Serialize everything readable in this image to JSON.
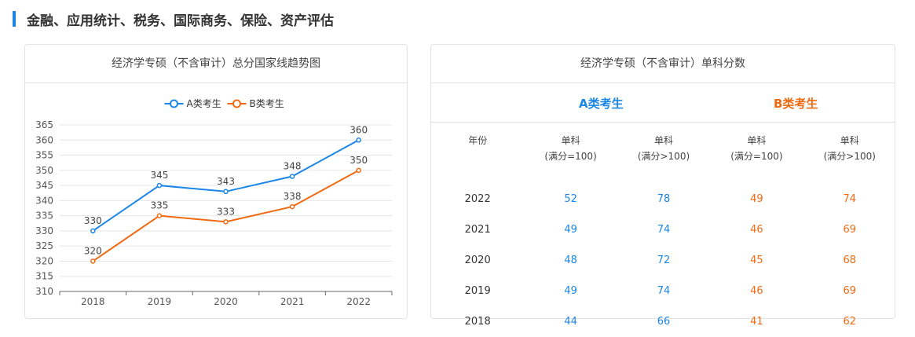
{
  "section": {
    "title": "金融、应用统计、税务、国际商务、保险、资产评估"
  },
  "chart_card": {
    "title": "经济学专硕（不含审计）总分国家线趋势图"
  },
  "chart_data": {
    "type": "line",
    "title": "经济学专硕（不含审计）总分国家线趋势图",
    "categories": [
      "2018",
      "2019",
      "2020",
      "2021",
      "2022"
    ],
    "series": [
      {
        "name": "A类考生",
        "values": [
          330,
          345,
          343,
          348,
          360
        ],
        "color": "#1a86e8"
      },
      {
        "name": "B类考生",
        "values": [
          320,
          335,
          333,
          338,
          350
        ],
        "color": "#f06a12"
      }
    ],
    "yticks": [
      310,
      315,
      320,
      325,
      330,
      335,
      340,
      345,
      350,
      355,
      360,
      365
    ],
    "ylim": [
      310,
      365
    ],
    "legend_position": "top-center",
    "grid": true,
    "xlabel": "",
    "ylabel": ""
  },
  "table_card": {
    "title": "经济学专硕（不含审计）单科分数",
    "category_a": "A类考生",
    "category_b": "B类考生",
    "headers": [
      [
        "年份"
      ],
      [
        "单科",
        "(满分=100)"
      ],
      [
        "单科",
        "(满分>100)"
      ],
      [
        "单科",
        "(满分=100)"
      ],
      [
        "单科",
        "(满分>100)"
      ]
    ],
    "rows": [
      [
        "2022",
        "52",
        "78",
        "49",
        "74"
      ],
      [
        "2021",
        "49",
        "74",
        "46",
        "69"
      ],
      [
        "2020",
        "48",
        "72",
        "45",
        "68"
      ],
      [
        "2019",
        "49",
        "74",
        "46",
        "69"
      ],
      [
        "2018",
        "44",
        "66",
        "41",
        "62"
      ]
    ],
    "colors": {
      "a": "#1a86e8",
      "b": "#f06a12"
    }
  }
}
